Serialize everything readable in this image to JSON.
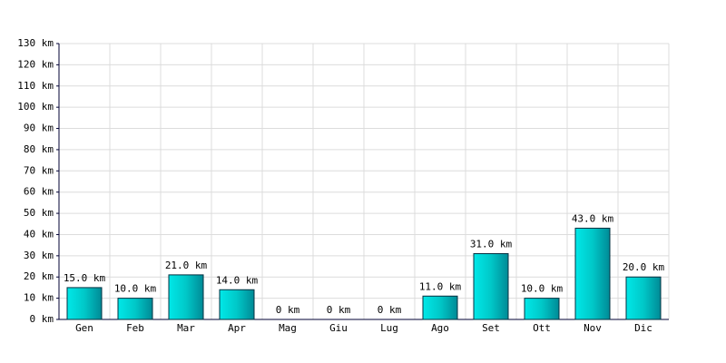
{
  "chart_data": {
    "type": "bar",
    "categories": [
      "Gen",
      "Feb",
      "Mar",
      "Apr",
      "Mag",
      "Giu",
      "Lug",
      "Ago",
      "Set",
      "Ott",
      "Nov",
      "Dic"
    ],
    "values": [
      15,
      10,
      21,
      14,
      0,
      0,
      0,
      11,
      31,
      10,
      43,
      20
    ],
    "value_labels": [
      "15.0 km",
      "10.0 km",
      "21.0 km",
      "14.0 km",
      "0 km",
      "0 km",
      "0 km",
      "11.0 km",
      "31.0 km",
      "10.0 km",
      "43.0 km",
      "20.0 km"
    ],
    "color": "#00c8c8",
    "ylim": [
      0,
      130
    ],
    "yticks": [
      {
        "value": 0,
        "label": "0 km"
      },
      {
        "value": 10,
        "label": "10 km"
      },
      {
        "value": 20,
        "label": "20 km"
      },
      {
        "value": 30,
        "label": "30 km"
      },
      {
        "value": 40,
        "label": "40 km"
      },
      {
        "value": 50,
        "label": "50 km"
      },
      {
        "value": 60,
        "label": "60 km"
      },
      {
        "value": 70,
        "label": "70 km"
      },
      {
        "value": 80,
        "label": "80 km"
      },
      {
        "value": 90,
        "label": "90 km"
      },
      {
        "value": 100,
        "label": "100 km"
      },
      {
        "value": 110,
        "label": "110 km"
      },
      {
        "value": 120,
        "label": "120 km"
      },
      {
        "value": 130,
        "label": "130 km"
      }
    ],
    "grid": true
  }
}
